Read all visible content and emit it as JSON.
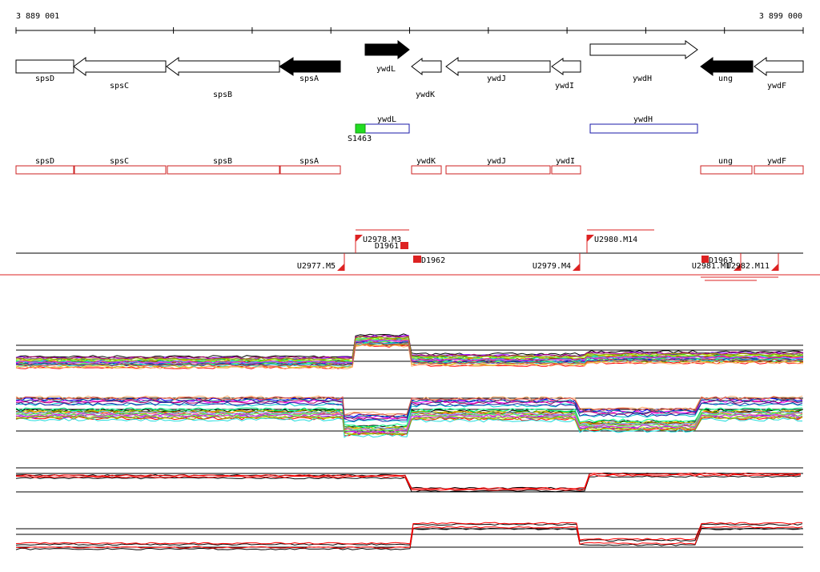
{
  "ruler": {
    "start_label": "3 889 001",
    "end_label": "3 899 000"
  },
  "genes": [
    {
      "name": "spsD",
      "strand": "-",
      "filled": false
    },
    {
      "name": "spsC",
      "strand": "-",
      "filled": false
    },
    {
      "name": "spsB",
      "strand": "-",
      "filled": false
    },
    {
      "name": "spsA",
      "strand": "-",
      "filled": true
    },
    {
      "name": "ywdL",
      "strand": "+",
      "filled": true
    },
    {
      "name": "ywdK",
      "strand": "-",
      "filled": false
    },
    {
      "name": "ywdJ",
      "strand": "-",
      "filled": false
    },
    {
      "name": "ywdI",
      "strand": "-",
      "filled": false
    },
    {
      "name": "ywdH",
      "strand": "+",
      "filled": false
    },
    {
      "name": "ung",
      "strand": "-",
      "filled": true
    },
    {
      "name": "ywdF",
      "strand": "-",
      "filled": false
    }
  ],
  "blue_track": [
    {
      "name": "ywdL"
    },
    {
      "name": "ywdH"
    }
  ],
  "green_marker": {
    "name": "S1463"
  },
  "red_track": [
    {
      "name": "spsD"
    },
    {
      "name": "spsC"
    },
    {
      "name": "spsB"
    },
    {
      "name": "spsA"
    },
    {
      "name": "ywdK"
    },
    {
      "name": "ywdJ"
    },
    {
      "name": "ywdI"
    },
    {
      "name": "ung"
    },
    {
      "name": "ywdF"
    }
  ],
  "transcripts": [
    {
      "name": "U2977.M5"
    },
    {
      "name": "U2978.M3"
    },
    {
      "name": "D1961"
    },
    {
      "name": "D1962"
    },
    {
      "name": "U2979.M4"
    },
    {
      "name": "U2980.M14"
    },
    {
      "name": "D1963"
    },
    {
      "name": "U2981.M1"
    },
    {
      "name": "U2982.M11"
    }
  ],
  "expression_panels": [
    {
      "name": "forward-strand-conditions",
      "style": "multicolor"
    },
    {
      "name": "reverse-strand-conditions",
      "style": "multicolor"
    },
    {
      "name": "forward-strand-summary",
      "style": "black-red"
    },
    {
      "name": "reverse-strand-summary",
      "style": "black-red"
    }
  ]
}
